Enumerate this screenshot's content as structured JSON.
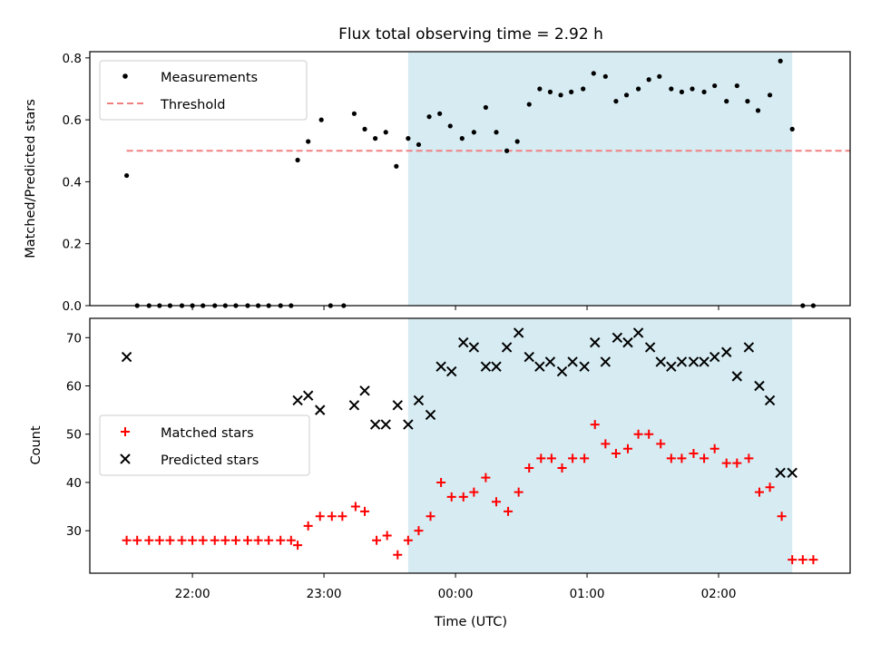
{
  "chart_data": {
    "title": "Flux total observing time = 2.92 h",
    "xlabel": "Time (UTC)",
    "x_ticks": [
      {
        "t": 22.0,
        "label": "22:00"
      },
      {
        "t": 23.0,
        "label": "23:00"
      },
      {
        "t": 24.0,
        "label": "00:00"
      },
      {
        "t": 25.0,
        "label": "01:00"
      },
      {
        "t": 26.0,
        "label": "02:00"
      }
    ],
    "xlim": [
      21.22,
      27.0
    ],
    "shaded_interval": [
      23.64,
      26.56
    ],
    "shade_color": "#add8e6",
    "panels": [
      {
        "type": "scatter",
        "ylabel": "Matched/Predicted stars",
        "ylim": [
          0,
          0.82
        ],
        "y_ticks": [
          "0.0",
          "0.2",
          "0.4",
          "0.6",
          "0.8"
        ],
        "threshold": {
          "name": "Threshold",
          "value": 0.5,
          "x_range": [
            21.5,
            27.0
          ],
          "color": "#f08080"
        },
        "series": [
          {
            "name": "Measurements",
            "marker": "dot",
            "color": "#000000",
            "points": [
              [
                21.5,
                0.42
              ],
              [
                21.58,
                0.0
              ],
              [
                21.67,
                0.0
              ],
              [
                21.75,
                0.0
              ],
              [
                21.83,
                0.0
              ],
              [
                21.92,
                0.0
              ],
              [
                22.0,
                0.0
              ],
              [
                22.08,
                0.0
              ],
              [
                22.17,
                0.0
              ],
              [
                22.25,
                0.0
              ],
              [
                22.33,
                0.0
              ],
              [
                22.42,
                0.0
              ],
              [
                22.5,
                0.0
              ],
              [
                22.58,
                0.0
              ],
              [
                22.67,
                0.0
              ],
              [
                22.75,
                0.0
              ],
              [
                22.8,
                0.47
              ],
              [
                22.88,
                0.53
              ],
              [
                22.98,
                0.6
              ],
              [
                23.05,
                0.0
              ],
              [
                23.15,
                0.0
              ],
              [
                23.23,
                0.62
              ],
              [
                23.31,
                0.57
              ],
              [
                23.39,
                0.54
              ],
              [
                23.47,
                0.56
              ],
              [
                23.55,
                0.45
              ],
              [
                23.64,
                0.54
              ],
              [
                23.72,
                0.52
              ],
              [
                23.8,
                0.61
              ],
              [
                23.88,
                0.62
              ],
              [
                23.96,
                0.58
              ],
              [
                24.05,
                0.54
              ],
              [
                24.14,
                0.56
              ],
              [
                24.23,
                0.64
              ],
              [
                24.31,
                0.56
              ],
              [
                24.39,
                0.5
              ],
              [
                24.47,
                0.53
              ],
              [
                24.56,
                0.65
              ],
              [
                24.64,
                0.7
              ],
              [
                24.72,
                0.69
              ],
              [
                24.8,
                0.68
              ],
              [
                24.88,
                0.69
              ],
              [
                24.97,
                0.7
              ],
              [
                25.05,
                0.75
              ],
              [
                25.14,
                0.74
              ],
              [
                25.22,
                0.66
              ],
              [
                25.3,
                0.68
              ],
              [
                25.39,
                0.7
              ],
              [
                25.47,
                0.73
              ],
              [
                25.55,
                0.74
              ],
              [
                25.64,
                0.7
              ],
              [
                25.72,
                0.69
              ],
              [
                25.8,
                0.7
              ],
              [
                25.89,
                0.69
              ],
              [
                25.97,
                0.71
              ],
              [
                26.06,
                0.66
              ],
              [
                26.14,
                0.71
              ],
              [
                26.22,
                0.66
              ],
              [
                26.3,
                0.63
              ],
              [
                26.39,
                0.68
              ],
              [
                26.47,
                0.79
              ],
              [
                26.56,
                0.57
              ],
              [
                26.64,
                0.0
              ],
              [
                26.72,
                0.0
              ]
            ]
          }
        ],
        "legend": {
          "position": "top-left",
          "entries": [
            "Measurements",
            "Threshold"
          ]
        }
      },
      {
        "type": "scatter",
        "ylabel": "Count",
        "ylim": [
          21.2,
          74
        ],
        "y_ticks": [
          "30",
          "40",
          "50",
          "60",
          "70"
        ],
        "series": [
          {
            "name": "Matched stars",
            "marker": "plus",
            "color": "#ff0000",
            "points": [
              [
                21.5,
                28
              ],
              [
                21.58,
                28
              ],
              [
                21.67,
                28
              ],
              [
                21.75,
                28
              ],
              [
                21.83,
                28
              ],
              [
                21.92,
                28
              ],
              [
                22.0,
                28
              ],
              [
                22.08,
                28
              ],
              [
                22.17,
                28
              ],
              [
                22.25,
                28
              ],
              [
                22.33,
                28
              ],
              [
                22.42,
                28
              ],
              [
                22.5,
                28
              ],
              [
                22.58,
                28
              ],
              [
                22.67,
                28
              ],
              [
                22.75,
                28
              ],
              [
                22.8,
                27
              ],
              [
                22.88,
                31
              ],
              [
                22.97,
                33
              ],
              [
                23.06,
                33
              ],
              [
                23.14,
                33
              ],
              [
                23.24,
                35
              ],
              [
                23.31,
                34
              ],
              [
                23.4,
                28
              ],
              [
                23.48,
                29
              ],
              [
                23.56,
                25
              ],
              [
                23.64,
                28
              ],
              [
                23.72,
                30
              ],
              [
                23.81,
                33
              ],
              [
                23.89,
                40
              ],
              [
                23.97,
                37
              ],
              [
                24.06,
                37
              ],
              [
                24.14,
                38
              ],
              [
                24.23,
                41
              ],
              [
                24.31,
                36
              ],
              [
                24.4,
                34
              ],
              [
                24.48,
                38
              ],
              [
                24.56,
                43
              ],
              [
                24.65,
                45
              ],
              [
                24.73,
                45
              ],
              [
                24.81,
                43
              ],
              [
                24.89,
                45
              ],
              [
                24.98,
                45
              ],
              [
                25.06,
                52
              ],
              [
                25.14,
                48
              ],
              [
                25.22,
                46
              ],
              [
                25.31,
                47
              ],
              [
                25.39,
                50
              ],
              [
                25.47,
                50
              ],
              [
                25.56,
                48
              ],
              [
                25.64,
                45
              ],
              [
                25.72,
                45
              ],
              [
                25.81,
                46
              ],
              [
                25.89,
                45
              ],
              [
                25.97,
                47
              ],
              [
                26.06,
                44
              ],
              [
                26.14,
                44
              ],
              [
                26.23,
                45
              ],
              [
                26.31,
                38
              ],
              [
                26.39,
                39
              ],
              [
                26.48,
                33
              ],
              [
                26.56,
                24
              ],
              [
                26.64,
                24
              ],
              [
                26.72,
                24
              ]
            ]
          },
          {
            "name": "Predicted stars",
            "marker": "cross",
            "color": "#000000",
            "points": [
              [
                21.5,
                66
              ],
              [
                22.8,
                57
              ],
              [
                22.88,
                58
              ],
              [
                22.97,
                55
              ],
              [
                23.23,
                56
              ],
              [
                23.31,
                59
              ],
              [
                23.39,
                52
              ],
              [
                23.47,
                52
              ],
              [
                23.56,
                56
              ],
              [
                23.64,
                52
              ],
              [
                23.72,
                57
              ],
              [
                23.81,
                54
              ],
              [
                23.89,
                64
              ],
              [
                23.97,
                63
              ],
              [
                24.06,
                69
              ],
              [
                24.14,
                68
              ],
              [
                24.23,
                64
              ],
              [
                24.31,
                64
              ],
              [
                24.39,
                68
              ],
              [
                24.48,
                71
              ],
              [
                24.56,
                66
              ],
              [
                24.64,
                64
              ],
              [
                24.72,
                65
              ],
              [
                24.81,
                63
              ],
              [
                24.89,
                65
              ],
              [
                24.98,
                64
              ],
              [
                25.06,
                69
              ],
              [
                25.14,
                65
              ],
              [
                25.23,
                70
              ],
              [
                25.31,
                69
              ],
              [
                25.39,
                71
              ],
              [
                25.48,
                68
              ],
              [
                25.56,
                65
              ],
              [
                25.64,
                64
              ],
              [
                25.72,
                65
              ],
              [
                25.81,
                65
              ],
              [
                25.89,
                65
              ],
              [
                25.97,
                66
              ],
              [
                26.06,
                67
              ],
              [
                26.14,
                62
              ],
              [
                26.23,
                68
              ],
              [
                26.31,
                60
              ],
              [
                26.39,
                57
              ],
              [
                26.47,
                42
              ],
              [
                26.56,
                42
              ]
            ]
          }
        ],
        "legend": {
          "position": "center-left",
          "entries": [
            "Matched stars",
            "Predicted stars"
          ]
        }
      }
    ]
  }
}
